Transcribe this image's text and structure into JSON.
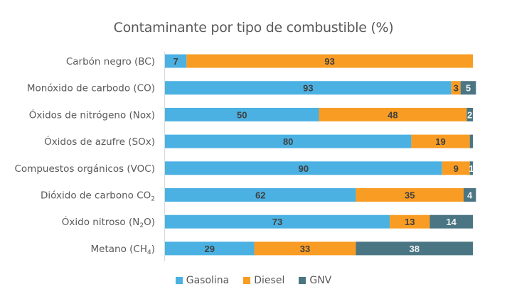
{
  "chart_data": {
    "type": "bar",
    "orientation": "horizontal",
    "stacked": true,
    "title": "Contaminante por tipo de combustible (%)",
    "xlabel": "",
    "ylabel": "",
    "xlim": [
      0,
      100
    ],
    "grid": false,
    "legend_position": "bottom",
    "categories": [
      {
        "text": "Carbón negro (BC)",
        "sub": "",
        "tail": ""
      },
      {
        "text": "Monóxido de carbodo (CO)",
        "sub": "",
        "tail": ""
      },
      {
        "text": "Óxidos de nitrógeno (Nox)",
        "sub": "",
        "tail": ""
      },
      {
        "text": "Óxidos de azufre (SOx)",
        "sub": "",
        "tail": ""
      },
      {
        "text": "Compuestos orgánicos (VOC)",
        "sub": "",
        "tail": ""
      },
      {
        "text": "Dióxido de carbono CO",
        "sub": "2",
        "tail": ""
      },
      {
        "text": "Óxido nitroso (N",
        "sub": "2",
        "tail": "O)"
      },
      {
        "text": "Metano (CH",
        "sub": "4",
        "tail": ")"
      }
    ],
    "series": [
      {
        "name": "Gasolina",
        "color": "#4BB1E2",
        "label_color": "#404040",
        "values": [
          7,
          93,
          50,
          80,
          90,
          62,
          73,
          29
        ],
        "labels": [
          "7",
          "93",
          "50",
          "80",
          "90",
          "62",
          "73",
          "29"
        ]
      },
      {
        "name": "Diesel",
        "color": "#F99C24",
        "label_color": "#404040",
        "values": [
          93,
          3,
          48,
          19,
          9,
          35,
          13,
          33
        ],
        "labels": [
          "93",
          "3",
          "48",
          "19",
          "9",
          "35",
          "13",
          "33"
        ]
      },
      {
        "name": "GNV",
        "color": "#4A7583",
        "label_color": "#F2F2F2",
        "values": [
          0,
          5,
          2,
          1,
          1,
          4,
          14,
          38
        ],
        "labels": [
          "",
          "5",
          "2",
          "",
          "1",
          "4",
          "14",
          "38"
        ]
      }
    ]
  }
}
